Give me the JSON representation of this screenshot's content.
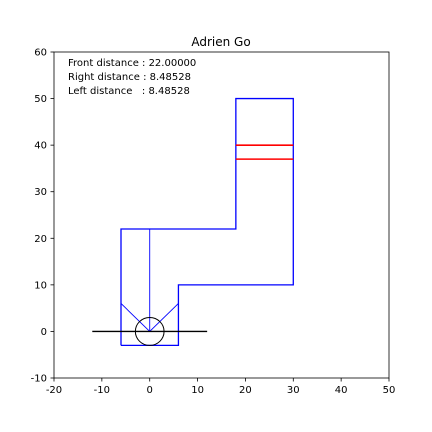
{
  "chart_data": {
    "type": "line",
    "title": "Adrien Go",
    "xlabel": "",
    "ylabel": "",
    "xlim": [
      -20,
      50
    ],
    "ylim": [
      -10,
      60
    ],
    "x_ticks": [
      -20,
      -10,
      0,
      10,
      20,
      30,
      40,
      50
    ],
    "y_ticks": [
      -10,
      0,
      10,
      20,
      30,
      40,
      50,
      60
    ],
    "grid": false,
    "info_lines": [
      "Front distance : 22.00000",
      "Right distance : 8.48528",
      "Left distance   : 8.48528"
    ],
    "track": {
      "color": "#0000ff",
      "points": [
        [
          -6,
          -3
        ],
        [
          -6,
          22
        ],
        [
          18,
          22
        ],
        [
          18,
          50
        ],
        [
          30,
          50
        ],
        [
          30,
          10
        ],
        [
          6,
          10
        ],
        [
          6,
          -3
        ],
        [
          -6,
          -3
        ]
      ]
    },
    "finish_lines": {
      "color": "#ff0000",
      "segments": [
        [
          [
            18,
            40
          ],
          [
            30,
            40
          ]
        ],
        [
          [
            18,
            37
          ],
          [
            30,
            37
          ]
        ]
      ]
    },
    "sensor_rays": {
      "color": "#0000ff",
      "segments": [
        [
          [
            0,
            0
          ],
          [
            0,
            22
          ]
        ],
        [
          [
            0,
            0
          ],
          [
            6,
            6
          ]
        ],
        [
          [
            0,
            0
          ],
          [
            -6,
            6
          ]
        ]
      ]
    },
    "car": {
      "color": "#000000",
      "center": [
        0,
        0
      ],
      "radius": 3,
      "heading_line": [
        [
          -12,
          0
        ],
        [
          12,
          0
        ]
      ]
    }
  }
}
